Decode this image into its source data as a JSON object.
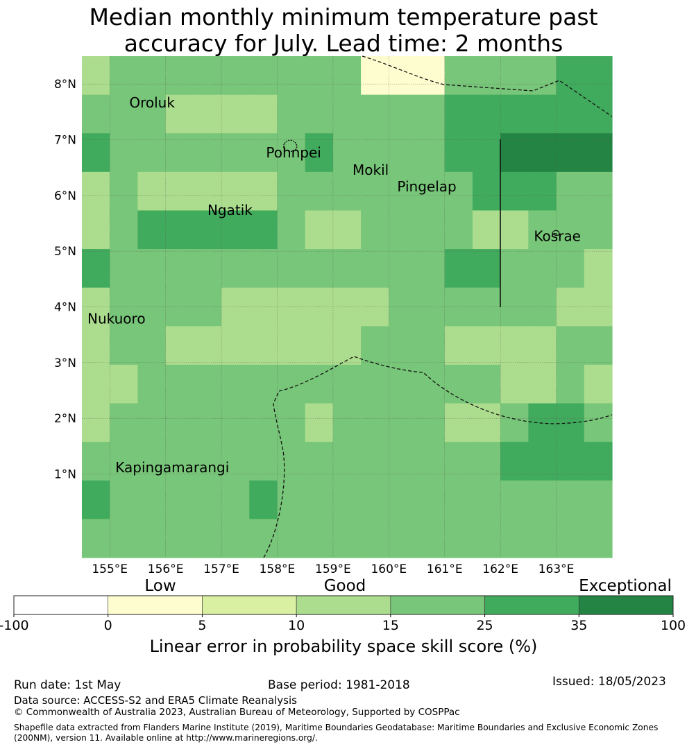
{
  "title": {
    "line1": "Median monthly minimum temperature past",
    "line2": "accuracy for July. Lead time: 2 months"
  },
  "map": {
    "lon_ticks": [
      "155°E",
      "156°E",
      "157°E",
      "158°E",
      "159°E",
      "160°E",
      "161°E",
      "162°E",
      "163°E"
    ],
    "lat_ticks": [
      "1°N",
      "2°N",
      "3°N",
      "4°N",
      "5°N",
      "6°N",
      "7°N",
      "8°N"
    ],
    "places": [
      {
        "name": "Oroluk",
        "lon": 155.35,
        "lat": 7.58
      },
      {
        "name": "Pohnpei",
        "lon": 157.8,
        "lat": 6.68
      },
      {
        "name": "Mokil",
        "lon": 159.35,
        "lat": 6.37
      },
      {
        "name": "Pingelap",
        "lon": 160.15,
        "lat": 6.07
      },
      {
        "name": "Ngatik",
        "lon": 156.75,
        "lat": 5.65
      },
      {
        "name": "Kosrae",
        "lon": 162.6,
        "lat": 5.18
      },
      {
        "name": "Nukuoro",
        "lon": 154.6,
        "lat": 3.7
      },
      {
        "name": "Kapingamarangi",
        "lon": 155.1,
        "lat": 1.03
      }
    ],
    "grid": {
      "lon_start": 154.5,
      "lat_top": 8.5,
      "cell_deg": 0.833,
      "categories": [
        "3444444444111444455",
        "4443333444444555555",
        "5444444454444556666",
        "3433333444444455544",
        "3455555433444433444",
        "5444444444444554443",
        "3444433333344444433",
        "3443333333444333344",
        "3344444444444443343",
        "3444444434444334554",
        "4444444444444445555",
        "5444445444444444444",
        "4444444444444444444"
      ]
    },
    "legend_colors": {
      "-100_0": "#ffffff",
      "0_5": "#fefdcf",
      "5_10": "#d9efa2",
      "10_15": "#acdd8e",
      "15_25": "#78c679",
      "25_35": "#41ab5d",
      "35_100": "#238443"
    }
  },
  "colorbar": {
    "ticks": [
      "-100",
      "0",
      "5",
      "10",
      "15",
      "25",
      "35",
      "100"
    ],
    "category_labels": [
      "Low",
      "Good",
      "Exceptional"
    ],
    "label": "Linear error in probability space skill score (%)"
  },
  "footer": {
    "run_date": "Run date: 1st May",
    "base_period": "Base period: 1981-2018",
    "issued": "Issued: 18/05/2023",
    "data_source": "Data source: ACCESS-S2 and ERA5 Climate Reanalysis",
    "copyright": "© Commonwealth of Australia 2023, Australian Bureau of Meteorology, Supported by COSPPac",
    "shapefile_line1": "Shapefile data extracted from Flanders Marine Institute (2019), Maritime Boundaries Geodatabase: Maritime Boundaries and Exclusive Economic Zones",
    "shapefile_line2": "(200NM), version 11. Available online at http://www.marineregions.org/."
  }
}
